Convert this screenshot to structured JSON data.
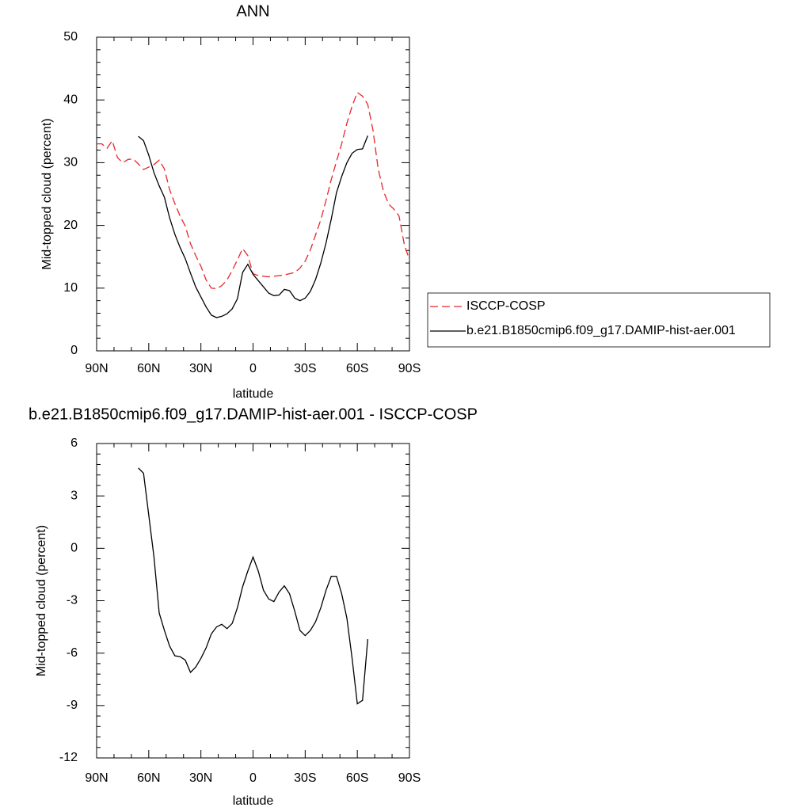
{
  "chart_data": [
    {
      "type": "line",
      "title": "ANN",
      "xlabel": "latitude",
      "ylabel": "Mid-topped cloud (percent)",
      "xlim": [
        90,
        -90
      ],
      "xticks": [
        {
          "value": 90,
          "label": "90N"
        },
        {
          "value": 60,
          "label": "60N"
        },
        {
          "value": 30,
          "label": "30N"
        },
        0,
        {
          "value": -30,
          "label": "30S"
        },
        {
          "value": -60,
          "label": "60S"
        },
        {
          "value": -90,
          "label": "90S"
        }
      ],
      "ylim": [
        0,
        50
      ],
      "yticks": [
        0,
        10,
        20,
        30,
        40,
        50
      ],
      "legend": "right",
      "series": [
        {
          "name": "ISCCP-COSP",
          "color": "#e8262a",
          "dash": true,
          "x": [
            90,
            87,
            84,
            81,
            78,
            75,
            72,
            69,
            66,
            63,
            60,
            57,
            54,
            51,
            48,
            45,
            42,
            39,
            36,
            33,
            30,
            27,
            24,
            21,
            18,
            15,
            12,
            9,
            6,
            3,
            0,
            -3,
            -6,
            -9,
            -12,
            -15,
            -18,
            -21,
            -24,
            -27,
            -30,
            -33,
            -36,
            -39,
            -42,
            -45,
            -48,
            -51,
            -54,
            -57,
            -60,
            -63,
            -66,
            -69,
            -72,
            -75,
            -78,
            -81,
            -84,
            -87,
            -90
          ],
          "values": [
            33,
            33,
            32.3,
            33.5,
            30.8,
            30,
            30.5,
            30.6,
            29.8,
            28.9,
            29.3,
            29.7,
            30.4,
            29,
            25.7,
            23.5,
            21.5,
            19.9,
            17.1,
            15.2,
            13.5,
            11.3,
            10,
            9.9,
            10.4,
            11.3,
            12.8,
            14.5,
            16.3,
            15.2,
            12.3,
            12,
            11.9,
            11.8,
            11.9,
            12,
            12.1,
            12.3,
            12.5,
            13.2,
            14.3,
            16.1,
            18.5,
            20.9,
            24,
            27.3,
            30.2,
            33,
            36.3,
            39,
            41.2,
            40.6,
            39.3,
            35.2,
            29,
            25.5,
            23.4,
            22.6,
            21.5,
            17,
            14.5
          ]
        },
        {
          "name": "b.e21.B1850cmip6.f09_g17.DAMIP-hist-aer.001",
          "color": "#000000",
          "dash": false,
          "x": [
            66,
            63,
            60,
            57,
            54,
            51,
            48,
            45,
            42,
            39,
            36,
            33,
            30,
            27,
            24,
            21,
            18,
            15,
            12,
            9,
            6,
            3,
            0,
            -3,
            -6,
            -9,
            -12,
            -15,
            -18,
            -21,
            -24,
            -27,
            -30,
            -33,
            -36,
            -39,
            -42,
            -45,
            -48,
            -51,
            -54,
            -57,
            -60,
            -63,
            -66
          ],
          "values": [
            34.2,
            33.5,
            31.2,
            28.4,
            26.3,
            24.5,
            21.2,
            18.6,
            16.5,
            14.7,
            12.4,
            10.2,
            8.6,
            7,
            5.7,
            5.3,
            5.5,
            5.9,
            6.7,
            8.3,
            12.5,
            13.8,
            12.2,
            11.2,
            10.2,
            9.2,
            8.8,
            8.9,
            9.8,
            9.6,
            8.4,
            8,
            8.4,
            9.5,
            11.4,
            14,
            17.2,
            21,
            25.2,
            27.8,
            30,
            31.5,
            32.1,
            32.2,
            34.3
          ]
        }
      ]
    },
    {
      "type": "line",
      "title": "b.e21.B1850cmip6.f09_g17.DAMIP-hist-aer.001 - ISCCP-COSP",
      "xlabel": "latitude",
      "ylabel": "Mid-topped cloud (percent)",
      "xlim": [
        90,
        -90
      ],
      "xticks": [
        {
          "value": 90,
          "label": "90N"
        },
        {
          "value": 60,
          "label": "60N"
        },
        {
          "value": 30,
          "label": "30N"
        },
        0,
        {
          "value": -30,
          "label": "30S"
        },
        {
          "value": -60,
          "label": "60S"
        },
        {
          "value": -90,
          "label": "90S"
        }
      ],
      "ylim": [
        -12,
        6
      ],
      "yticks": [
        -12,
        -9,
        -6,
        -3,
        0,
        3,
        6
      ],
      "series": [
        {
          "color": "#000000",
          "dash": false,
          "x": [
            66,
            63,
            60,
            57,
            54,
            51,
            48,
            45,
            42,
            39,
            36,
            33,
            30,
            27,
            24,
            21,
            18,
            15,
            12,
            9,
            6,
            3,
            0,
            -3,
            -6,
            -9,
            -12,
            -15,
            -18,
            -21,
            -24,
            -27,
            -30,
            -33,
            -36,
            -39,
            -42,
            -45,
            -48,
            -51,
            -54,
            -57,
            -60,
            -63,
            -66
          ],
          "values": [
            4.6,
            4.3,
            1.9,
            -0.5,
            -3.7,
            -4.7,
            -5.6,
            -6.15,
            -6.2,
            -6.4,
            -7.1,
            -6.8,
            -6.3,
            -5.7,
            -4.9,
            -4.5,
            -4.35,
            -4.6,
            -4.3,
            -3.4,
            -2.2,
            -1.3,
            -0.5,
            -1.3,
            -2.4,
            -2.9,
            -3.05,
            -2.5,
            -2.15,
            -2.6,
            -3.6,
            -4.7,
            -5,
            -4.7,
            -4.2,
            -3.4,
            -2.4,
            -1.6,
            -1.6,
            -2.6,
            -4,
            -6.3,
            -8.9,
            -8.7,
            -5.2
          ]
        }
      ]
    }
  ]
}
